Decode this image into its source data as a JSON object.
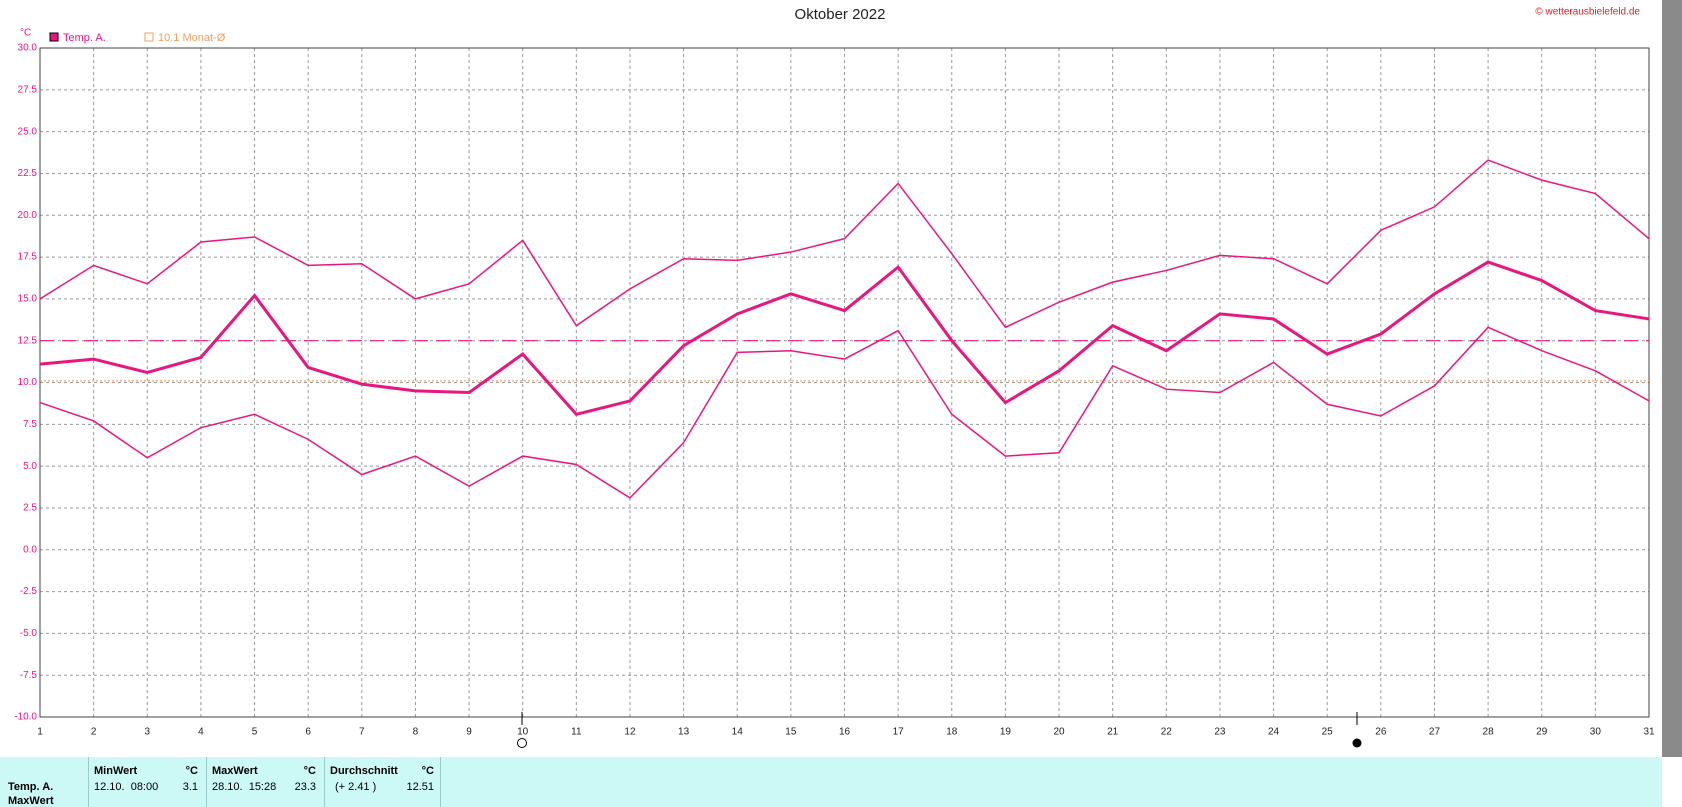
{
  "chart_data": {
    "type": "line",
    "title": "Oktober 2022",
    "unit": "°C",
    "credit": "© wetterausbielefeld.de",
    "legend": [
      {
        "label": "Temp. A.",
        "color": "#e8177f",
        "marker": "filled"
      },
      {
        "label": "10.1 Monat-Ø",
        "color": "#f0a060",
        "marker": "open"
      }
    ],
    "x": [
      1,
      2,
      3,
      4,
      5,
      6,
      7,
      8,
      9,
      10,
      11,
      12,
      13,
      14,
      15,
      16,
      17,
      18,
      19,
      20,
      21,
      22,
      23,
      24,
      25,
      26,
      27,
      28,
      29,
      30,
      31
    ],
    "xlim": [
      1,
      31
    ],
    "xticks": [
      1,
      2,
      3,
      4,
      5,
      6,
      7,
      8,
      9,
      10,
      11,
      12,
      13,
      14,
      15,
      16,
      17,
      18,
      19,
      20,
      21,
      22,
      23,
      24,
      25,
      26,
      27,
      28,
      29,
      30,
      31
    ],
    "ylim": [
      -10,
      30
    ],
    "yticks": [
      {
        "value": 30,
        "label": "30.0"
      },
      {
        "value": 27.5,
        "label": "27.5"
      },
      {
        "value": 25,
        "label": "25.0"
      },
      {
        "value": 22.5,
        "label": "22.5"
      },
      {
        "value": 20,
        "label": "20.0"
      },
      {
        "value": 17.5,
        "label": "17.5"
      },
      {
        "value": 15,
        "label": "15.0"
      },
      {
        "value": 12.5,
        "label": "12.5"
      },
      {
        "value": 10,
        "label": "10.0"
      },
      {
        "value": 7.5,
        "label": "7.5"
      },
      {
        "value": 5,
        "label": "5.0"
      },
      {
        "value": 2.5,
        "label": "2.5"
      },
      {
        "value": 0,
        "label": "0.0"
      },
      {
        "value": -2.5,
        "label": "-2.5"
      },
      {
        "value": -5,
        "label": "-5.0"
      },
      {
        "value": -7.5,
        "label": "-7.5"
      },
      {
        "value": -10,
        "label": "-10.0"
      }
    ],
    "grid": true,
    "series": [
      {
        "color": "#e8177f",
        "width": 1.5,
        "values": [
          15.0,
          17.0,
          15.9,
          18.4,
          18.7,
          17.0,
          17.1,
          15.0,
          15.9,
          18.5,
          13.4,
          15.6,
          17.4,
          17.3,
          17.8,
          18.6,
          21.9,
          17.7,
          13.3,
          14.8,
          16.0,
          16.7,
          17.6,
          17.4,
          15.9,
          19.1,
          20.5,
          23.3,
          22.1,
          21.3,
          18.6
        ]
      },
      {
        "color": "#e8177f",
        "width": 3,
        "values": [
          11.1,
          11.4,
          10.6,
          11.5,
          15.2,
          10.9,
          9.9,
          9.5,
          9.4,
          11.7,
          8.1,
          8.9,
          12.2,
          14.1,
          15.3,
          14.3,
          16.9,
          12.5,
          8.8,
          10.7,
          13.4,
          11.9,
          14.1,
          13.8,
          11.7,
          12.9,
          15.3,
          17.2,
          16.1,
          14.3,
          13.8
        ]
      },
      {
        "color": "#e8177f",
        "width": 1.5,
        "values": [
          8.8,
          7.7,
          5.5,
          7.3,
          8.1,
          6.6,
          4.5,
          5.6,
          3.8,
          5.6,
          5.1,
          3.1,
          6.4,
          11.8,
          11.9,
          11.4,
          13.1,
          8.1,
          5.6,
          5.8,
          11.0,
          9.6,
          9.4,
          11.2,
          8.7,
          8.0,
          9.8,
          13.3,
          11.9,
          10.7,
          8.9
        ]
      }
    ],
    "ref_lines": [
      {
        "value": 12.5,
        "color": "#e8177f",
        "dash": "14 8"
      },
      {
        "value": 10.1,
        "color": "#f0a060",
        "dash": "2 2"
      }
    ]
  },
  "table": {
    "row_labels": [
      "Temp. A.",
      "MaxWert"
    ],
    "headers": [
      [
        "MinWert",
        "°C"
      ],
      [
        "MaxWert",
        "°C"
      ],
      [
        "Durchschnitt",
        "°C"
      ]
    ],
    "rows": [
      [
        [
          "12.10.  08:00",
          "3.1"
        ],
        [
          "28.10.  15:28",
          "23.3"
        ],
        [
          "(+ 2.41 )",
          "12.51"
        ]
      ]
    ]
  }
}
